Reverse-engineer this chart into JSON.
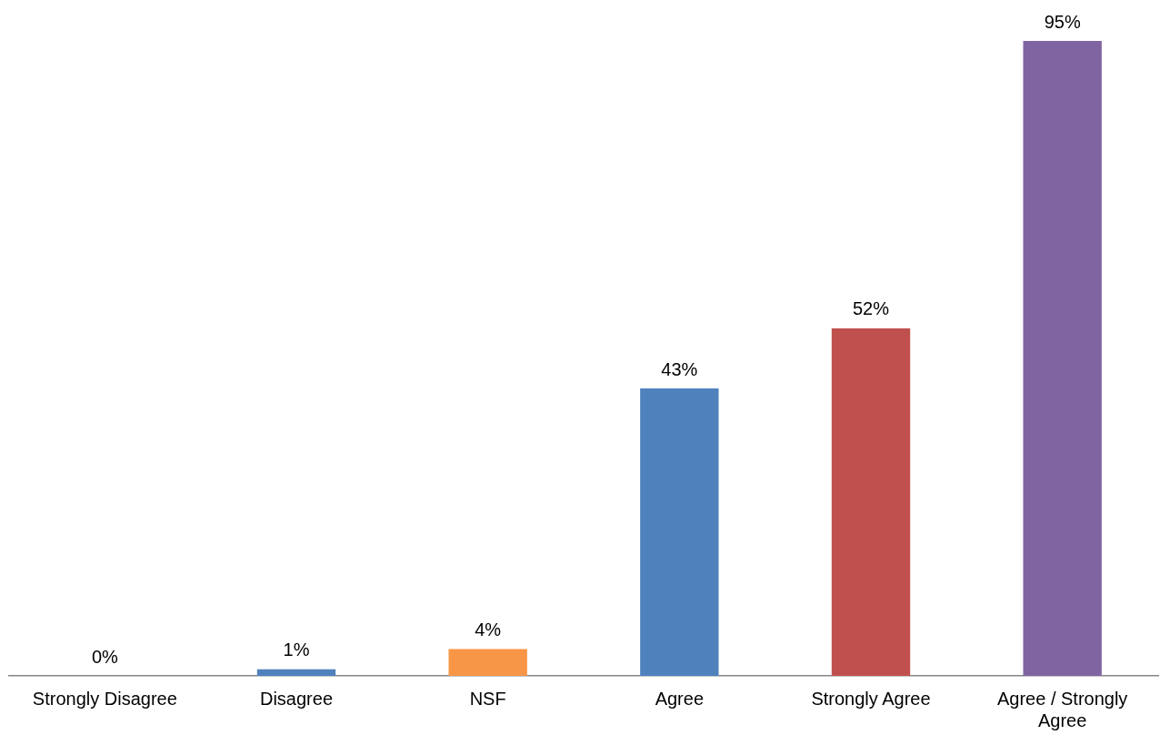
{
  "chart_data": {
    "type": "bar",
    "categories": [
      "Strongly Disagree",
      "Disagree",
      "NSF",
      "Agree",
      "Strongly Agree",
      "Agree / Strongly Agree"
    ],
    "values": [
      0,
      1,
      4,
      43,
      52,
      95
    ],
    "colors": [
      "#4f81bd",
      "#4f81bd",
      "#f79646",
      "#4f81bd",
      "#c0504d",
      "#8064a2"
    ],
    "value_labels": [
      "0%",
      "1%",
      "4%",
      "43%",
      "52%",
      "95%"
    ],
    "ylim": [
      0,
      95
    ],
    "tick_labels": "x",
    "legend": false
  }
}
